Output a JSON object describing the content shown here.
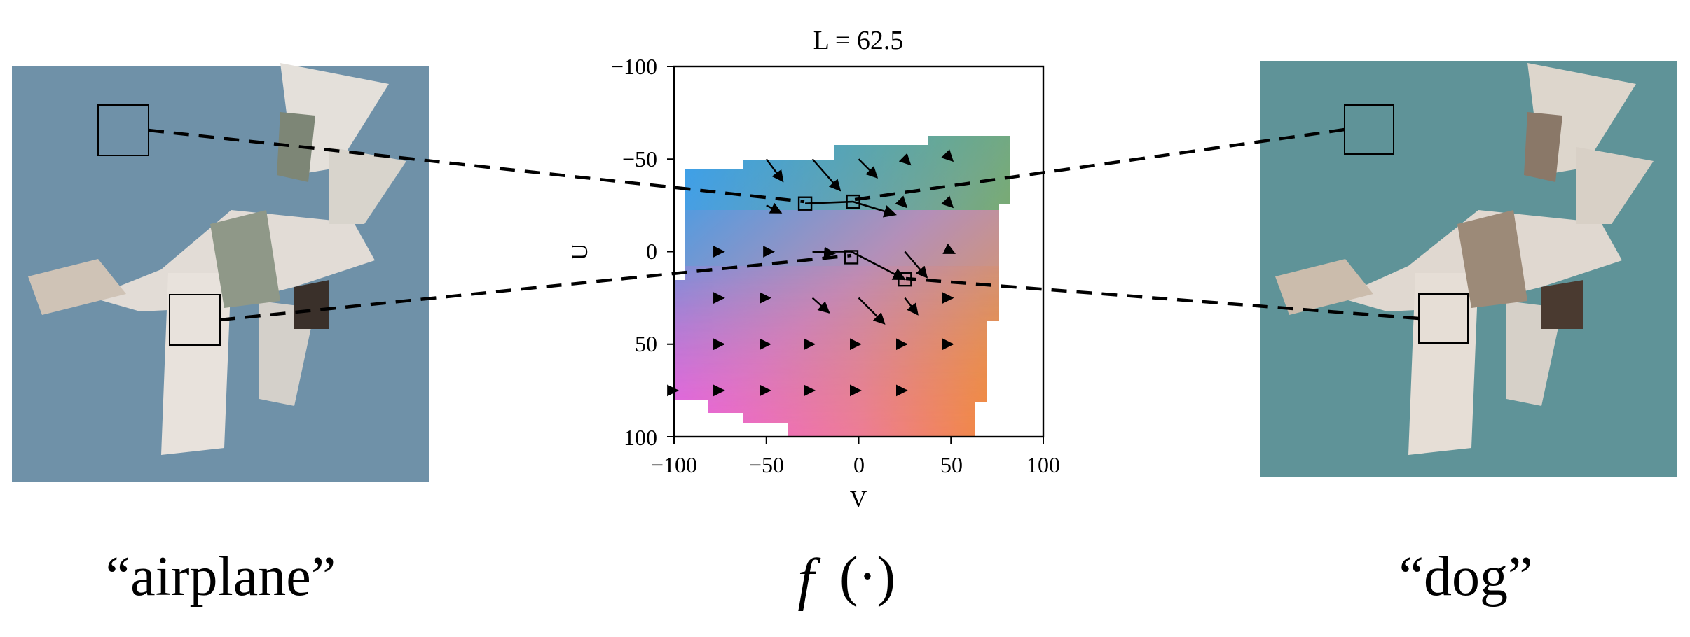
{
  "left_panel": {
    "caption": "“airplane”",
    "sky_color": "#6f91a8"
  },
  "right_panel": {
    "caption": "“dog”",
    "sky_color": "#5f9398"
  },
  "center": {
    "caption_func": "f",
    "caption_arg": "(·)",
    "title": "L = 62.5",
    "xlabel": "V",
    "ylabel": "U",
    "x_ticks": [
      "−100",
      "−50",
      "0",
      "50",
      "100"
    ],
    "y_ticks": [
      "−100",
      "−50",
      "0",
      "50",
      "100"
    ]
  },
  "chart_data": {
    "type": "vector-field",
    "title": "L = 62.5",
    "xlabel": "V",
    "ylabel": "U",
    "xlim": [
      -100,
      100
    ],
    "ylim": [
      -100,
      100
    ],
    "y_inverted": true,
    "markers": [
      {
        "v": -29,
        "u": -26
      },
      {
        "v": -3,
        "u": -27
      },
      {
        "v": -4,
        "u": 3
      },
      {
        "v": 25,
        "u": 15
      }
    ],
    "paths": [
      [
        [
          -29,
          -26
        ],
        [
          -3,
          -27
        ]
      ],
      [
        [
          -3,
          -27
        ],
        [
          20,
          -20
        ]
      ],
      [
        [
          -25,
          0
        ],
        [
          -4,
          0
        ]
      ],
      [
        [
          -4,
          0
        ],
        [
          25,
          15
        ]
      ]
    ]
  }
}
